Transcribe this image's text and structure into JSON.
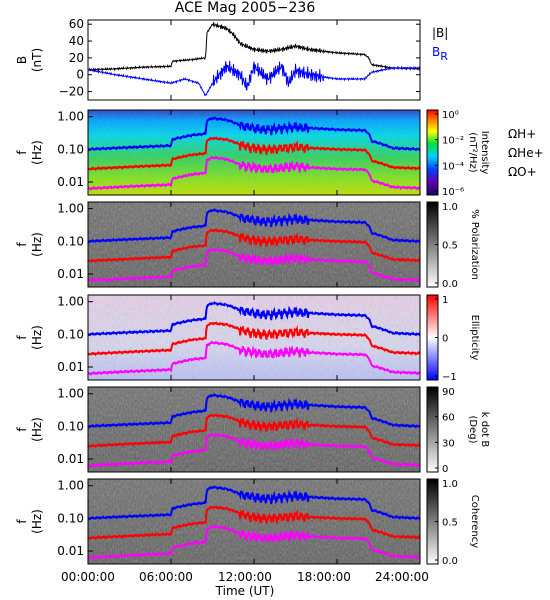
{
  "chart_data": {
    "title": "ACE Mag 2005−236",
    "xlabel": "Time (UT)",
    "x_ticks": [
      "00:00:00",
      "06:00:00",
      "12:00:00",
      "18:00:00",
      "24:00:00"
    ],
    "xlim_hours": [
      0,
      24
    ],
    "panels": [
      {
        "type": "line",
        "ylabel": "B",
        "ylabel_units": "(nT)",
        "ylim": [
          -30,
          65
        ],
        "y_ticks": [
          "60",
          "40",
          "20",
          "0",
          "−20"
        ],
        "legend": [
          "|B|",
          "B"
        ],
        "legend_sub": [
          "",
          "R"
        ],
        "series": [
          {
            "name": "|B|",
            "color": "#000000",
            "x": [
              0,
              2,
              4,
              6,
              6.1,
              7.5,
              8.5,
              8.6,
              9,
              10,
              10.5,
              11,
              12,
              13,
              14,
              15,
              16,
              17,
              18,
              19,
              20,
              20.3,
              20.5,
              22,
              24
            ],
            "y": [
              6,
              7,
              9,
              10,
              16,
              18,
              20,
              50,
              60,
              55,
              48,
              37,
              30,
              28,
              30,
              34,
              30,
              28,
              26,
              25,
              24,
              20,
              12,
              8,
              7
            ]
          },
          {
            "name": "B",
            "color": "#0000ff",
            "x": [
              0,
              2,
              4,
              6,
              7,
              8,
              8.5,
              9,
              10,
              11,
              11.5,
              12,
              13,
              14,
              14.5,
              15,
              16,
              18,
              20,
              20.5,
              22,
              24
            ],
            "y": [
              6,
              0,
              -5,
              -10,
              -5,
              -10,
              -25,
              -10,
              10,
              0,
              -15,
              10,
              -5,
              10,
              -10,
              5,
              0,
              -5,
              -5,
              3,
              8,
              8
            ]
          }
        ]
      },
      {
        "type": "heatmap",
        "ylabel": "f",
        "ylabel_units": "(Hz)",
        "y_ticks": [
          "1.00",
          "0.10",
          "0.01"
        ],
        "colorbar": {
          "label": "Intensity",
          "units": "(nT²/Hz)",
          "ticks": [
            "10⁰",
            "10⁻²",
            "10⁻⁴",
            "10⁻⁶"
          ],
          "scale": "rainbow"
        },
        "overlays": [
          "ΩH+",
          "ΩHe+",
          "ΩO+"
        ]
      },
      {
        "type": "heatmap",
        "ylabel": "f",
        "ylabel_units": "(Hz)",
        "y_ticks": [
          "1.00",
          "0.10",
          "0.01"
        ],
        "colorbar": {
          "label": "% Polarization",
          "units": "",
          "ticks": [
            "1.0",
            "0.5",
            "0.0"
          ],
          "scale": "gray"
        },
        "overlays": [
          "ΩH+",
          "ΩHe+",
          "ΩO+"
        ]
      },
      {
        "type": "heatmap",
        "ylabel": "f",
        "ylabel_units": "(Hz)",
        "y_ticks": [
          "1.00",
          "0.10",
          "0.01"
        ],
        "colorbar": {
          "label": "Ellipticity",
          "units": "",
          "ticks": [
            "1",
            "0",
            "−1"
          ],
          "scale": "bwr"
        },
        "overlays": [
          "ΩH+",
          "ΩHe+",
          "ΩO+"
        ]
      },
      {
        "type": "heatmap",
        "ylabel": "f",
        "ylabel_units": "(Hz)",
        "y_ticks": [
          "1.00",
          "0.10",
          "0.01"
        ],
        "colorbar": {
          "label": "k dot B",
          "units": "(Deg)",
          "ticks": [
            "90",
            "60",
            "30",
            "0"
          ],
          "scale": "gray"
        },
        "overlays": [
          "ΩH+",
          "ΩHe+",
          "ΩO+"
        ]
      },
      {
        "type": "heatmap",
        "ylabel": "f",
        "ylabel_units": "(Hz)",
        "y_ticks": [
          "1.00",
          "0.10",
          "0.01"
        ],
        "colorbar": {
          "label": "Coherency",
          "units": "",
          "ticks": [
            "1.0",
            "0.5",
            "0.0"
          ],
          "scale": "gray"
        },
        "overlays": [
          "ΩH+",
          "ΩHe+",
          "ΩO+"
        ]
      }
    ],
    "gyrofrequency_series": [
      {
        "name": "ΩH+",
        "color": "#0000ff",
        "x": [
          0,
          6,
          6.1,
          7.5,
          8.5,
          8.6,
          9,
          10,
          11,
          12,
          13,
          14,
          15,
          16,
          18,
          20,
          20.3,
          20.5,
          22,
          24
        ],
        "y": [
          0.1,
          0.13,
          0.2,
          0.27,
          0.3,
          0.75,
          0.9,
          0.8,
          0.55,
          0.45,
          0.4,
          0.45,
          0.5,
          0.45,
          0.4,
          0.38,
          0.3,
          0.18,
          0.11,
          0.1
        ]
      },
      {
        "name": "ΩHe+",
        "color": "#ff0000",
        "x": [
          0,
          6,
          6.1,
          7.5,
          8.5,
          8.6,
          9,
          10,
          11,
          12,
          13,
          14,
          15,
          16,
          18,
          20,
          20.3,
          20.5,
          22,
          24
        ],
        "y": [
          0.025,
          0.033,
          0.05,
          0.068,
          0.075,
          0.19,
          0.22,
          0.2,
          0.14,
          0.11,
          0.1,
          0.11,
          0.12,
          0.11,
          0.1,
          0.095,
          0.075,
          0.045,
          0.028,
          0.026
        ]
      },
      {
        "name": "ΩO+",
        "color": "#ff00ff",
        "x": [
          0,
          6,
          6.1,
          7.5,
          8.5,
          8.6,
          9,
          10,
          11,
          12,
          13,
          14,
          15,
          16,
          18,
          20,
          20.3,
          20.5,
          22,
          24
        ],
        "y": [
          0.0063,
          0.0083,
          0.0125,
          0.017,
          0.019,
          0.047,
          0.056,
          0.05,
          0.034,
          0.028,
          0.025,
          0.028,
          0.031,
          0.028,
          0.025,
          0.024,
          0.019,
          0.011,
          0.007,
          0.0065
        ]
      }
    ]
  }
}
